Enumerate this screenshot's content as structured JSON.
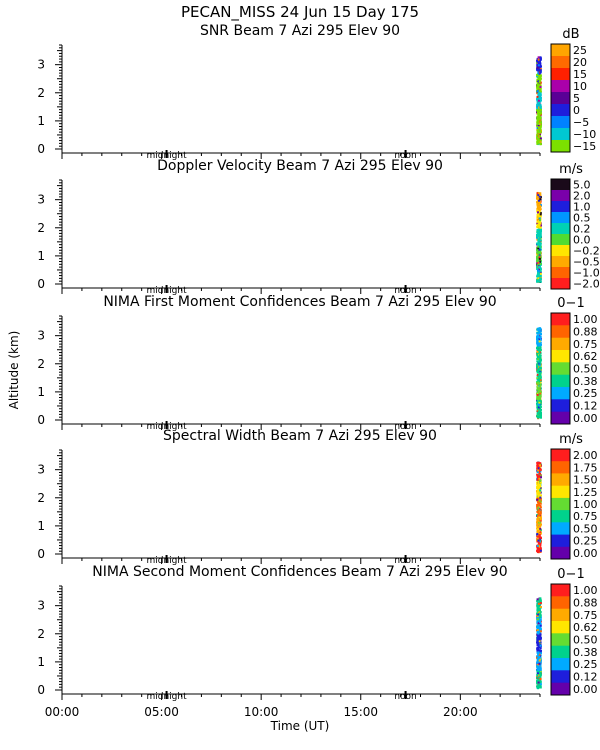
{
  "header": {
    "title": "PECAN_MISS  24 Jun 15 Day 175"
  },
  "axes": {
    "ylabel": "Altitude (km)",
    "xlabel": "Time (UT)",
    "xticks": [
      "00:00",
      "05:00",
      "10:00",
      "15:00",
      "20:00"
    ],
    "yticks": [
      "0",
      "1",
      "2",
      "3"
    ],
    "markers": [
      "midnight",
      "noon"
    ]
  },
  "chart_data": [
    {
      "type": "heatmap",
      "title": "SNR Beam 7 Azi 295 Elev 90",
      "unit": "dB",
      "xlim": [
        0,
        24
      ],
      "ylim": [
        0,
        3.7
      ],
      "data_x_range": [
        23.8,
        24.0
      ],
      "data_y_range": [
        0.2,
        3.3
      ],
      "colorbar": {
        "labels": [
          "25",
          "20",
          "15",
          "10",
          "5",
          "0",
          "−5",
          "−10",
          "−15"
        ],
        "colors": [
          "#ffa500",
          "#ff6a00",
          "#ff2000",
          "#aa00aa",
          "#5a0096",
          "#1e1edc",
          "#0082ff",
          "#00c8d2",
          "#7ce000"
        ]
      },
      "dominant": [
        "#7ce000",
        "#7ce000",
        "#00c8d2",
        "#7ce000",
        "#1e1edc"
      ]
    },
    {
      "type": "heatmap",
      "title": "Doppler Velocity Beam 7 Azi 295 Elev 90",
      "unit": "m/s",
      "xlim": [
        0,
        24
      ],
      "ylim": [
        0,
        3.7
      ],
      "data_x_range": [
        23.8,
        24.0
      ],
      "data_y_range": [
        0.1,
        3.3
      ],
      "colorbar": {
        "labels": [
          "5.0",
          "2.0",
          "1.0",
          "0.5",
          "0.2",
          "0.0",
          "−0.2",
          "−0.5",
          "−1.0",
          "−2.0"
        ],
        "colors": [
          "#1a0a1a",
          "#7a00aa",
          "#1e1edc",
          "#0096ff",
          "#00d2b4",
          "#50dc32",
          "#ffe600",
          "#ffaa00",
          "#ff6400",
          "#ff1e1e"
        ]
      },
      "dominant": [
        "#00d2b4",
        "#50dc32",
        "#00d2b4",
        "#ffe600",
        "#ffaa00"
      ]
    },
    {
      "type": "heatmap",
      "title": "NIMA First Moment Confidences Beam 7 Azi 295 Elev 90",
      "unit": "0−1",
      "xlim": [
        0,
        24
      ],
      "ylim": [
        0,
        3.7
      ],
      "data_x_range": [
        23.8,
        24.0
      ],
      "data_y_range": [
        0.1,
        3.3
      ],
      "colorbar": {
        "labels": [
          "1.00",
          "0.88",
          "0.75",
          "0.62",
          "0.50",
          "0.38",
          "0.25",
          "0.12",
          "0.00"
        ],
        "colors": [
          "#ff1e1e",
          "#ff6400",
          "#ffaa00",
          "#ffe600",
          "#64dc32",
          "#00d28c",
          "#00aaff",
          "#1e1edc",
          "#6400aa"
        ]
      },
      "dominant": [
        "#00d28c",
        "#64dc32",
        "#00d28c",
        "#00d28c",
        "#00aaff"
      ]
    },
    {
      "type": "heatmap",
      "title": "Spectral Width Beam 7 Azi 295 Elev 90",
      "unit": "m/s",
      "xlim": [
        0,
        24
      ],
      "ylim": [
        0,
        3.7
      ],
      "data_x_range": [
        23.8,
        24.0
      ],
      "data_y_range": [
        0.1,
        3.3
      ],
      "colorbar": {
        "labels": [
          "2.00",
          "1.75",
          "1.50",
          "1.25",
          "1.00",
          "0.75",
          "0.50",
          "0.25",
          "0.00"
        ],
        "colors": [
          "#ff1e1e",
          "#ff6400",
          "#ffaa00",
          "#ffe600",
          "#64dc32",
          "#00d28c",
          "#00aaff",
          "#1e1edc",
          "#6400aa"
        ]
      },
      "dominant": [
        "#ff1e1e",
        "#ffaa00",
        "#ff6400",
        "#ffe600",
        "#ff1e1e"
      ]
    },
    {
      "type": "heatmap",
      "title": "NIMA Second Moment Confidences Beam 7 Azi 295 Elev 90",
      "unit": "0−1",
      "xlim": [
        0,
        24
      ],
      "ylim": [
        0,
        3.7
      ],
      "data_x_range": [
        23.8,
        24.0
      ],
      "data_y_range": [
        0.1,
        3.3
      ],
      "colorbar": {
        "labels": [
          "1.00",
          "0.88",
          "0.75",
          "0.62",
          "0.50",
          "0.38",
          "0.25",
          "0.12",
          "0.00"
        ],
        "colors": [
          "#ff1e1e",
          "#ff6400",
          "#ffaa00",
          "#ffe600",
          "#64dc32",
          "#00d28c",
          "#00aaff",
          "#1e1edc",
          "#6400aa"
        ]
      },
      "dominant": [
        "#00d28c",
        "#00aaff",
        "#1e1edc",
        "#00aaff",
        "#00d28c"
      ]
    }
  ]
}
